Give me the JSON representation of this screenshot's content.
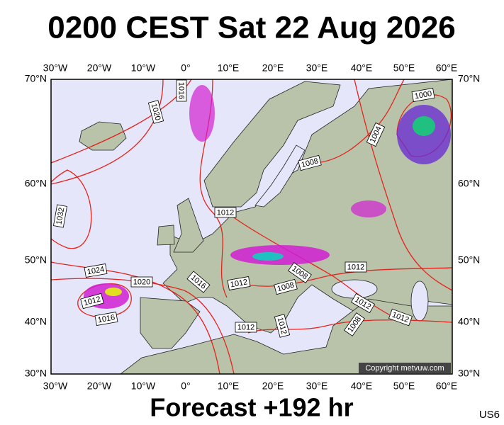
{
  "title": "0200 CEST Sat 22 Aug 2026",
  "footer": "Forecast +192 hr",
  "code": "US6",
  "copyright": "Copyright metvuw.com",
  "map": {
    "lon_labels": [
      "30°W",
      "20°W",
      "10°W",
      "0°",
      "10°E",
      "20°E",
      "30°E",
      "40°E",
      "50°E",
      "60°E"
    ],
    "lat_labels": [
      "70°N",
      "60°N",
      "50°N",
      "40°N",
      "30°N"
    ],
    "isobar_labels": [
      "1016",
      "1020",
      "1032",
      "1024",
      "1020",
      "1012",
      "1016",
      "1016",
      "1012",
      "1012",
      "1008",
      "1008",
      "1012",
      "1012",
      "1012",
      "1012",
      "1012",
      "1008",
      "1008",
      "1004",
      "1000"
    ]
  }
}
